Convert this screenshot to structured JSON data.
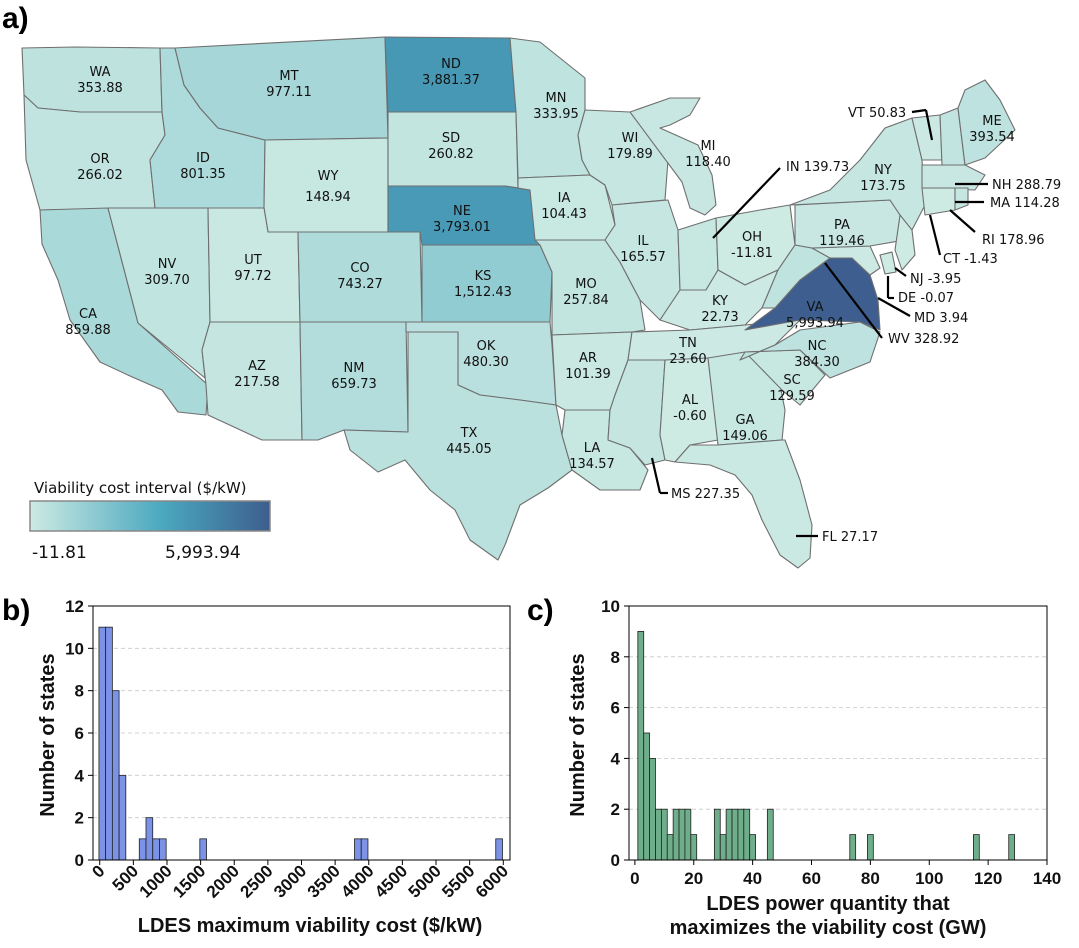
{
  "panel_labels": {
    "a": "a)",
    "b": "b)",
    "c": "c)"
  },
  "map": {
    "colorbar": {
      "title": "Viability cost interval ($/kW)",
      "min_label": "-11.81",
      "max_label": "5,993.94",
      "min": -11.81,
      "max": 5993.94,
      "color_low": "#cdeae3",
      "color_high": "#3d5e8e"
    },
    "states": [
      {
        "abbr": "WA",
        "value": "353.88",
        "num": 353.88
      },
      {
        "abbr": "OR",
        "value": "266.02",
        "num": 266.02
      },
      {
        "abbr": "CA",
        "value": "859.88",
        "num": 859.88
      },
      {
        "abbr": "ID",
        "value": "801.35",
        "num": 801.35
      },
      {
        "abbr": "NV",
        "value": "309.70",
        "num": 309.7
      },
      {
        "abbr": "MT",
        "value": "977.11",
        "num": 977.11
      },
      {
        "abbr": "WY",
        "value": "148.94",
        "num": 148.94
      },
      {
        "abbr": "UT",
        "value": "97.72",
        "num": 97.72
      },
      {
        "abbr": "AZ",
        "value": "217.58",
        "num": 217.58
      },
      {
        "abbr": "CO",
        "value": "743.27",
        "num": 743.27
      },
      {
        "abbr": "NM",
        "value": "659.73",
        "num": 659.73
      },
      {
        "abbr": "ND",
        "value": "3,881.37",
        "num": 3881.37
      },
      {
        "abbr": "SD",
        "value": "260.82",
        "num": 260.82
      },
      {
        "abbr": "NE",
        "value": "3,793.01",
        "num": 3793.01
      },
      {
        "abbr": "KS",
        "value": "1,512.43",
        "num": 1512.43
      },
      {
        "abbr": "OK",
        "value": "480.30",
        "num": 480.3
      },
      {
        "abbr": "TX",
        "value": "445.05",
        "num": 445.05
      },
      {
        "abbr": "MN",
        "value": "333.95",
        "num": 333.95
      },
      {
        "abbr": "IA",
        "value": "104.43",
        "num": 104.43
      },
      {
        "abbr": "MO",
        "value": "257.84",
        "num": 257.84
      },
      {
        "abbr": "AR",
        "value": "101.39",
        "num": 101.39
      },
      {
        "abbr": "LA",
        "value": "134.57",
        "num": 134.57
      },
      {
        "abbr": "WI",
        "value": "179.89",
        "num": 179.89
      },
      {
        "abbr": "IL",
        "value": "165.57",
        "num": 165.57
      },
      {
        "abbr": "MI",
        "value": "118.40",
        "num": 118.4
      },
      {
        "abbr": "OH",
        "value": "-11.81",
        "num": -11.81
      },
      {
        "abbr": "KY",
        "value": "22.73",
        "num": 22.73
      },
      {
        "abbr": "TN",
        "value": "23.60",
        "num": 23.6
      },
      {
        "abbr": "AL",
        "value": "-0.60",
        "num": -0.6
      },
      {
        "abbr": "GA",
        "value": "149.06",
        "num": 149.06
      },
      {
        "abbr": "SC",
        "value": "129.59",
        "num": 129.59
      },
      {
        "abbr": "NC",
        "value": "384.30",
        "num": 384.3
      },
      {
        "abbr": "VA",
        "value": "5,993.94",
        "num": 5993.94
      },
      {
        "abbr": "PA",
        "value": "119.46",
        "num": 119.46
      },
      {
        "abbr": "NY",
        "value": "173.75",
        "num": 173.75
      },
      {
        "abbr": "ME",
        "value": "393.54",
        "num": 393.54
      }
    ],
    "callouts": [
      {
        "abbr": "IN",
        "value": "139.73",
        "num": 139.73
      },
      {
        "abbr": "VT",
        "value": "50.83",
        "num": 50.83
      },
      {
        "abbr": "NH",
        "value": "288.79",
        "num": 288.79
      },
      {
        "abbr": "MA",
        "value": "114.28",
        "num": 114.28
      },
      {
        "abbr": "RI",
        "value": "178.96",
        "num": 178.96
      },
      {
        "abbr": "CT",
        "value": "-1.43",
        "num": -1.43
      },
      {
        "abbr": "NJ",
        "value": "-3.95",
        "num": -3.95
      },
      {
        "abbr": "DE",
        "value": "-0.07",
        "num": -0.07
      },
      {
        "abbr": "MD",
        "value": "3.94",
        "num": 3.94
      },
      {
        "abbr": "WV",
        "value": "328.92",
        "num": 328.92
      },
      {
        "abbr": "MS",
        "value": "227.35",
        "num": 227.35
      },
      {
        "abbr": "FL",
        "value": "27.17",
        "num": 27.17
      }
    ]
  },
  "chart_data": [
    {
      "type": "bar",
      "title": "",
      "xlabel": "LDES maximum viability cost ($/kW)",
      "ylabel": "Number of states",
      "xlim": [
        -100,
        6100
      ],
      "ylim": [
        0,
        12
      ],
      "bin_width": 100,
      "bar_color": "#7b92e6",
      "xticks": [
        0,
        500,
        1000,
        1500,
        2000,
        2500,
        3000,
        3500,
        4000,
        4500,
        5000,
        5500,
        6000
      ],
      "yticks": [
        0,
        2,
        4,
        6,
        8,
        10,
        12
      ],
      "bins_start": [
        -12,
        88,
        188,
        288,
        388,
        588,
        688,
        788,
        888,
        1488,
        3788,
        3888,
        5888
      ],
      "values": [
        11,
        11,
        8,
        4,
        0,
        1,
        2,
        1,
        1,
        1,
        1,
        1,
        1
      ]
    },
    {
      "type": "bar",
      "title": "",
      "xlabel": "LDES power quantity that maximizes the viability cost (GW)",
      "xlabel_lines": [
        "LDES power quantity that",
        "maximizes the viability cost (GW)"
      ],
      "ylabel": "Number of states",
      "xlim": [
        -2,
        140
      ],
      "ylim": [
        0,
        10
      ],
      "bin_width": 2,
      "bar_color": "#6fae8a",
      "xticks": [
        0,
        20,
        40,
        60,
        80,
        100,
        120,
        140
      ],
      "yticks": [
        0,
        2,
        4,
        6,
        8,
        10
      ],
      "bins_start": [
        1,
        3,
        5,
        7,
        9,
        11,
        13,
        15,
        17,
        19,
        27,
        29,
        31,
        33,
        35,
        37,
        39,
        45,
        73,
        79,
        115,
        127
      ],
      "values": [
        9,
        5,
        4,
        2,
        2,
        1,
        2,
        2,
        2,
        1,
        2,
        1,
        2,
        2,
        2,
        2,
        1,
        2,
        1,
        1,
        1,
        1
      ]
    }
  ]
}
